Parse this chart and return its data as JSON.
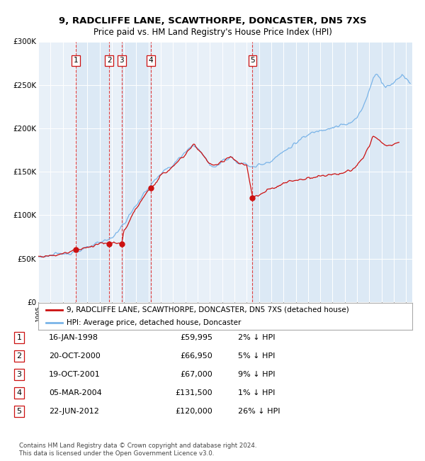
{
  "title": "9, RADCLIFFE LANE, SCAWTHORPE, DONCASTER, DN5 7XS",
  "subtitle": "Price paid vs. HM Land Registry's House Price Index (HPI)",
  "background_color": "#dce9f5",
  "plot_bg_color": "#dce9f5",
  "ylim": [
    0,
    300000
  ],
  "yticks": [
    0,
    50000,
    100000,
    150000,
    200000,
    250000,
    300000
  ],
  "ytick_labels": [
    "£0",
    "£50K",
    "£100K",
    "£150K",
    "£200K",
    "£250K",
    "£300K"
  ],
  "hpi_color": "#7ab4e8",
  "price_color": "#cc1111",
  "sales": [
    {
      "num": 1,
      "date_x": 1998.04,
      "price": 59995
    },
    {
      "num": 2,
      "date_x": 2000.8,
      "price": 66950
    },
    {
      "num": 3,
      "date_x": 2001.8,
      "price": 67000
    },
    {
      "num": 4,
      "date_x": 2004.17,
      "price": 131500
    },
    {
      "num": 5,
      "date_x": 2012.47,
      "price": 120000
    }
  ],
  "legend_entries": [
    "9, RADCLIFFE LANE, SCAWTHORPE, DONCASTER, DN5 7XS (detached house)",
    "HPI: Average price, detached house, Doncaster"
  ],
  "table_rows": [
    [
      "1",
      "16-JAN-1998",
      "£59,995",
      "2% ↓ HPI"
    ],
    [
      "2",
      "20-OCT-2000",
      "£66,950",
      "5% ↓ HPI"
    ],
    [
      "3",
      "19-OCT-2001",
      "£67,000",
      "9% ↓ HPI"
    ],
    [
      "4",
      "05-MAR-2004",
      "£131,500",
      "1% ↓ HPI"
    ],
    [
      "5",
      "22-JUN-2012",
      "£120,000",
      "26% ↓ HPI"
    ]
  ],
  "footer": "Contains HM Land Registry data © Crown copyright and database right 2024.\nThis data is licensed under the Open Government Licence v3.0.",
  "xmin": 1995,
  "xmax": 2025.5
}
